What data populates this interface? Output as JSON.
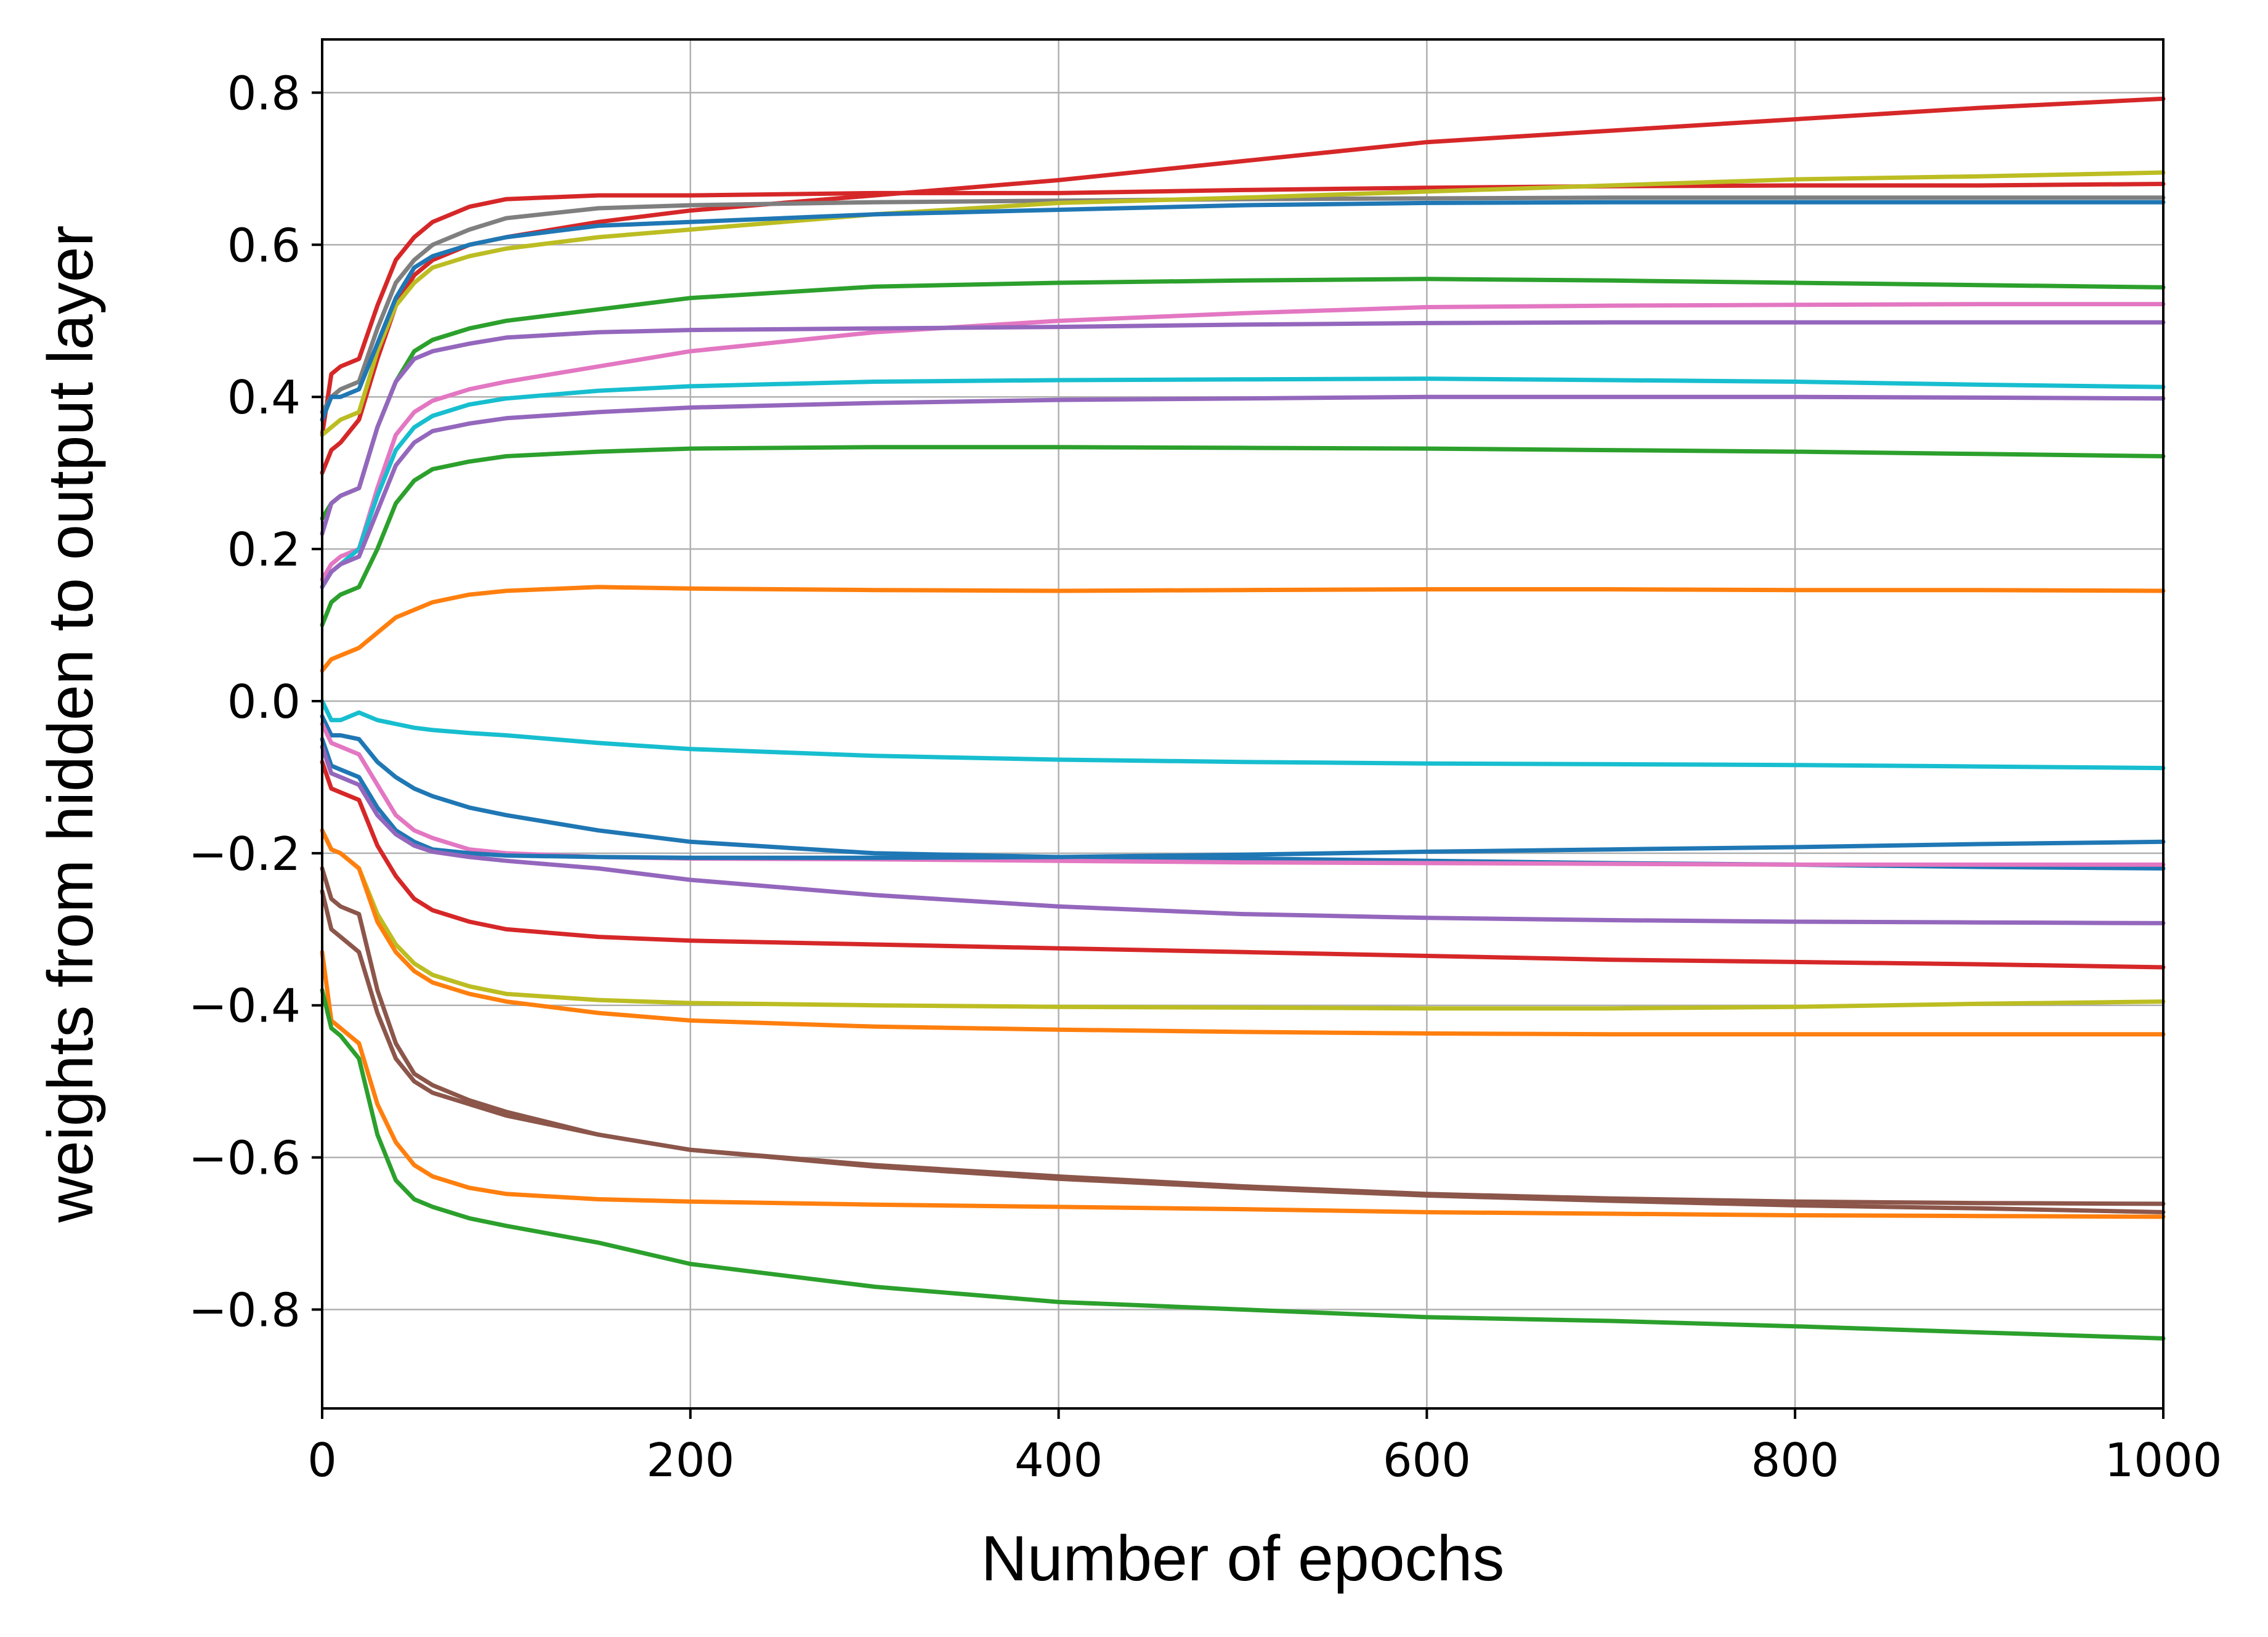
{
  "chart_data": {
    "type": "line",
    "title": "",
    "xlabel": "Number of epochs",
    "ylabel": "weights from hidden to output layer",
    "xlim": [
      0,
      1000
    ],
    "ylim": [
      -0.93,
      0.87
    ],
    "xticks": [
      0,
      200,
      400,
      600,
      800,
      1000
    ],
    "xtick_labels": [
      "0",
      "200",
      "400",
      "600",
      "800",
      "1000"
    ],
    "yticks": [
      -0.8,
      -0.6,
      -0.4,
      -0.2,
      0.0,
      0.2,
      0.4,
      0.6,
      0.8
    ],
    "ytick_labels": [
      "−0.8",
      "−0.6",
      "−0.4",
      "−0.2",
      "0.0",
      "0.2",
      "0.4",
      "0.6",
      "0.8"
    ],
    "grid": true,
    "legend": "none",
    "x": [
      0,
      5,
      10,
      20,
      30,
      40,
      50,
      60,
      80,
      100,
      150,
      200,
      300,
      400,
      500,
      600,
      700,
      800,
      900,
      1000
    ],
    "series": [
      {
        "color": "#d62728",
        "values": [
          0.35,
          0.43,
          0.44,
          0.45,
          0.52,
          0.58,
          0.61,
          0.63,
          0.65,
          0.66,
          0.665,
          0.665,
          0.668,
          0.668,
          0.672,
          0.675,
          0.677,
          0.678,
          0.678,
          0.68
        ]
      },
      {
        "color": "#d62728",
        "values": [
          0.3,
          0.33,
          0.34,
          0.37,
          0.45,
          0.52,
          0.56,
          0.58,
          0.6,
          0.61,
          0.63,
          0.645,
          0.665,
          0.685,
          0.71,
          0.735,
          0.75,
          0.765,
          0.78,
          0.792
        ]
      },
      {
        "color": "#7f7f7f",
        "values": [
          0.38,
          0.4,
          0.41,
          0.42,
          0.49,
          0.55,
          0.58,
          0.6,
          0.62,
          0.635,
          0.648,
          0.652,
          0.656,
          0.658,
          0.66,
          0.661,
          0.662,
          0.662,
          0.662,
          0.662
        ]
      },
      {
        "color": "#bcbd22",
        "values": [
          0.35,
          0.36,
          0.37,
          0.38,
          0.46,
          0.52,
          0.55,
          0.57,
          0.585,
          0.595,
          0.61,
          0.62,
          0.64,
          0.655,
          0.662,
          0.67,
          0.678,
          0.686,
          0.69,
          0.695
        ]
      },
      {
        "color": "#1f77b4",
        "values": [
          0.37,
          0.4,
          0.4,
          0.41,
          0.47,
          0.53,
          0.57,
          0.585,
          0.6,
          0.61,
          0.625,
          0.63,
          0.64,
          0.646,
          0.652,
          0.655,
          0.656,
          0.656,
          0.656,
          0.656
        ]
      },
      {
        "color": "#2ca02c",
        "values": [
          0.24,
          0.26,
          0.27,
          0.28,
          0.36,
          0.42,
          0.46,
          0.475,
          0.49,
          0.5,
          0.515,
          0.53,
          0.545,
          0.55,
          0.553,
          0.555,
          0.553,
          0.55,
          0.547,
          0.544
        ]
      },
      {
        "color": "#e377c2",
        "values": [
          0.16,
          0.18,
          0.19,
          0.2,
          0.28,
          0.35,
          0.38,
          0.395,
          0.41,
          0.42,
          0.44,
          0.46,
          0.485,
          0.5,
          0.51,
          0.518,
          0.52,
          0.521,
          0.522,
          0.522
        ]
      },
      {
        "color": "#9467bd",
        "values": [
          0.22,
          0.26,
          0.27,
          0.28,
          0.36,
          0.42,
          0.45,
          0.46,
          0.47,
          0.478,
          0.485,
          0.488,
          0.49,
          0.492,
          0.495,
          0.497,
          0.498,
          0.498,
          0.498,
          0.498
        ]
      },
      {
        "color": "#17becf",
        "values": [
          0.15,
          0.17,
          0.18,
          0.2,
          0.27,
          0.33,
          0.36,
          0.375,
          0.39,
          0.398,
          0.408,
          0.414,
          0.42,
          0.422,
          0.423,
          0.424,
          0.422,
          0.42,
          0.416,
          0.413
        ]
      },
      {
        "color": "#9467bd",
        "values": [
          0.15,
          0.17,
          0.18,
          0.19,
          0.25,
          0.31,
          0.34,
          0.355,
          0.365,
          0.372,
          0.38,
          0.386,
          0.392,
          0.396,
          0.398,
          0.4,
          0.4,
          0.4,
          0.399,
          0.398
        ]
      },
      {
        "color": "#2ca02c",
        "values": [
          0.1,
          0.13,
          0.14,
          0.15,
          0.2,
          0.26,
          0.29,
          0.305,
          0.315,
          0.322,
          0.328,
          0.332,
          0.334,
          0.334,
          0.333,
          0.332,
          0.33,
          0.328,
          0.325,
          0.322
        ]
      },
      {
        "color": "#ff7f0e",
        "values": [
          0.04,
          0.055,
          0.06,
          0.07,
          0.09,
          0.11,
          0.12,
          0.13,
          0.14,
          0.145,
          0.15,
          0.148,
          0.146,
          0.145,
          0.146,
          0.147,
          0.147,
          0.146,
          0.146,
          0.145
        ]
      },
      {
        "color": "#17becf",
        "values": [
          0.0,
          -0.025,
          -0.025,
          -0.015,
          -0.025,
          -0.03,
          -0.035,
          -0.038,
          -0.042,
          -0.045,
          -0.055,
          -0.063,
          -0.072,
          -0.077,
          -0.08,
          -0.082,
          -0.083,
          -0.084,
          -0.086,
          -0.088
        ]
      },
      {
        "color": "#1f77b4",
        "values": [
          -0.02,
          -0.045,
          -0.045,
          -0.05,
          -0.08,
          -0.1,
          -0.115,
          -0.125,
          -0.14,
          -0.15,
          -0.17,
          -0.185,
          -0.2,
          -0.205,
          -0.207,
          -0.21,
          -0.213,
          -0.215,
          -0.218,
          -0.22
        ]
      },
      {
        "color": "#e377c2",
        "values": [
          -0.03,
          -0.055,
          -0.06,
          -0.07,
          -0.11,
          -0.15,
          -0.17,
          -0.18,
          -0.195,
          -0.2,
          -0.205,
          -0.207,
          -0.208,
          -0.21,
          -0.212,
          -0.213,
          -0.214,
          -0.215,
          -0.215,
          -0.215
        ]
      },
      {
        "color": "#1f77b4",
        "values": [
          -0.05,
          -0.085,
          -0.09,
          -0.1,
          -0.14,
          -0.17,
          -0.185,
          -0.195,
          -0.2,
          -0.203,
          -0.205,
          -0.206,
          -0.206,
          -0.205,
          -0.202,
          -0.198,
          -0.195,
          -0.192,
          -0.188,
          -0.185
        ]
      },
      {
        "color": "#9467bd",
        "values": [
          -0.06,
          -0.095,
          -0.1,
          -0.11,
          -0.15,
          -0.175,
          -0.19,
          -0.198,
          -0.205,
          -0.21,
          -0.22,
          -0.235,
          -0.255,
          -0.27,
          -0.28,
          -0.285,
          -0.288,
          -0.29,
          -0.291,
          -0.292
        ]
      },
      {
        "color": "#d62728",
        "values": [
          -0.08,
          -0.115,
          -0.12,
          -0.13,
          -0.19,
          -0.23,
          -0.26,
          -0.275,
          -0.29,
          -0.3,
          -0.31,
          -0.315,
          -0.32,
          -0.325,
          -0.33,
          -0.335,
          -0.34,
          -0.343,
          -0.346,
          -0.35
        ]
      },
      {
        "color": "#bcbd22",
        "values": [
          -0.17,
          -0.195,
          -0.2,
          -0.22,
          -0.28,
          -0.32,
          -0.345,
          -0.36,
          -0.375,
          -0.385,
          -0.393,
          -0.397,
          -0.4,
          -0.402,
          -0.403,
          -0.404,
          -0.404,
          -0.402,
          -0.398,
          -0.395
        ]
      },
      {
        "color": "#ff7f0e",
        "values": [
          -0.17,
          -0.195,
          -0.2,
          -0.22,
          -0.29,
          -0.33,
          -0.355,
          -0.37,
          -0.385,
          -0.395,
          -0.41,
          -0.42,
          -0.428,
          -0.432,
          -0.435,
          -0.437,
          -0.438,
          -0.438,
          -0.438,
          -0.438
        ]
      },
      {
        "color": "#8c564b",
        "values": [
          -0.22,
          -0.26,
          -0.27,
          -0.28,
          -0.38,
          -0.45,
          -0.49,
          -0.505,
          -0.525,
          -0.54,
          -0.57,
          -0.59,
          -0.612,
          -0.628,
          -0.64,
          -0.65,
          -0.657,
          -0.663,
          -0.667,
          -0.672
        ]
      },
      {
        "color": "#8c564b",
        "values": [
          -0.25,
          -0.3,
          -0.31,
          -0.33,
          -0.41,
          -0.47,
          -0.5,
          -0.515,
          -0.53,
          -0.545,
          -0.57,
          -0.59,
          -0.61,
          -0.625,
          -0.638,
          -0.648,
          -0.654,
          -0.658,
          -0.66,
          -0.661
        ]
      },
      {
        "color": "#ff7f0e",
        "values": [
          -0.33,
          -0.42,
          -0.43,
          -0.45,
          -0.53,
          -0.58,
          -0.61,
          -0.625,
          -0.64,
          -0.648,
          -0.655,
          -0.658,
          -0.662,
          -0.665,
          -0.668,
          -0.672,
          -0.674,
          -0.676,
          -0.677,
          -0.678
        ]
      },
      {
        "color": "#2ca02c",
        "values": [
          -0.38,
          -0.43,
          -0.44,
          -0.47,
          -0.57,
          -0.63,
          -0.655,
          -0.665,
          -0.68,
          -0.69,
          -0.712,
          -0.74,
          -0.77,
          -0.79,
          -0.8,
          -0.81,
          -0.815,
          -0.822,
          -0.83,
          -0.838
        ]
      }
    ]
  }
}
